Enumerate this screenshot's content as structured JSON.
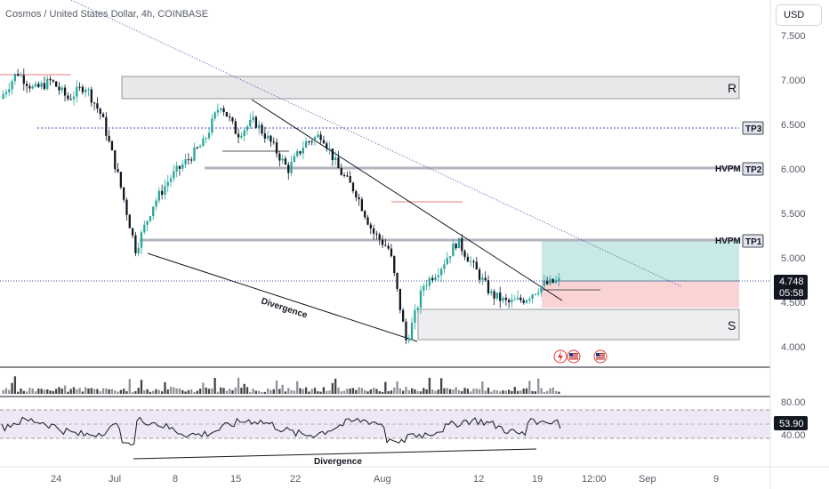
{
  "header": {
    "symbol_title": "Cosmos / United States Dollar, 4h, COINBASE",
    "currency": "USD"
  },
  "price_axis": {
    "ticks": [
      "7.500",
      "7.000",
      "6.500",
      "6.000",
      "5.500",
      "5.000",
      "4.500",
      "4.000"
    ],
    "current_price": "4.748",
    "countdown": "05:58"
  },
  "time_axis": {
    "ticks": [
      "24",
      "Jul",
      "8",
      "15",
      "22",
      "Aug",
      "12",
      "19",
      "12:00",
      "Sep",
      "9"
    ]
  },
  "annotations": {
    "zone_r": "R",
    "zone_s": "S",
    "tp3": "TP3",
    "tp2": "TP2",
    "tp1": "TP1",
    "hvpm_1": "HVPM",
    "hvpm_2": "HVPM",
    "divergence_price": "Divergence",
    "divergence_rsi": "Divergence"
  },
  "rsi_axis": {
    "ticks": [
      "80.00",
      "40.00"
    ],
    "current": "53.90"
  },
  "colors": {
    "up": "#26a69a",
    "down": "#131722",
    "tp_zone": "#b2dfdb",
    "sl_zone": "#f8c4c7",
    "rsi_line": "#131722",
    "rsi_band": "#ede7f6",
    "trendline_dotted": "#3f51b5"
  },
  "chart_data": {
    "type": "candlestick",
    "title": "Cosmos / United States Dollar, 4h, COINBASE",
    "ylim": [
      3.75,
      7.75
    ],
    "y_ticks": [
      7.5,
      7.0,
      6.5,
      6.0,
      5.5,
      5.0,
      4.5,
      4.0
    ],
    "close_path": [
      {
        "x": "Jun 20",
        "y": 6.8
      },
      {
        "x": "Jun 21",
        "y": 7.1
      },
      {
        "x": "Jun 24",
        "y": 6.9
      },
      {
        "x": "Jun 26",
        "y": 7.0
      },
      {
        "x": "Jun 28",
        "y": 6.8
      },
      {
        "x": "Jul 1",
        "y": 6.95
      },
      {
        "x": "Jul 2",
        "y": 6.6
      },
      {
        "x": "Jul 3",
        "y": 5.9
      },
      {
        "x": "Jul 4",
        "y": 5.1
      },
      {
        "x": "Jul 5",
        "y": 5.6
      },
      {
        "x": "Jul 7",
        "y": 5.9
      },
      {
        "x": "Jul 10",
        "y": 6.1
      },
      {
        "x": "Jul 13",
        "y": 6.3
      },
      {
        "x": "Jul 15",
        "y": 6.75
      },
      {
        "x": "Jul 17",
        "y": 6.4
      },
      {
        "x": "Jul 19",
        "y": 6.55
      },
      {
        "x": "Jul 21",
        "y": 6.3
      },
      {
        "x": "Jul 23",
        "y": 6.0
      },
      {
        "x": "Jul 25",
        "y": 6.3
      },
      {
        "x": "Jul 26",
        "y": 6.4
      },
      {
        "x": "Jul 28",
        "y": 6.0
      },
      {
        "x": "Jul 30",
        "y": 5.75
      },
      {
        "x": "Aug 1",
        "y": 5.3
      },
      {
        "x": "Aug 3",
        "y": 5.1
      },
      {
        "x": "Aug 5",
        "y": 4.05
      },
      {
        "x": "Aug 6",
        "y": 4.7
      },
      {
        "x": "Aug 7",
        "y": 4.9
      },
      {
        "x": "Aug 9",
        "y": 5.2
      },
      {
        "x": "Aug 11",
        "y": 4.9
      },
      {
        "x": "Aug 13",
        "y": 4.6
      },
      {
        "x": "Aug 15",
        "y": 4.5
      },
      {
        "x": "Aug 17",
        "y": 4.55
      },
      {
        "x": "Aug 19",
        "y": 4.7
      },
      {
        "x": "Aug 21",
        "y": 4.75
      }
    ],
    "levels": {
      "resistance_zone": [
        6.8,
        7.05
      ],
      "support_zone": [
        4.08,
        4.42
      ],
      "tp3": 6.47,
      "tp2": 6.0,
      "tp1": 5.2,
      "entry": 4.748,
      "stop_zone": [
        4.4,
        4.68
      ]
    },
    "rsi": {
      "ylim": [
        20,
        100
      ],
      "ticks": [
        80,
        40
      ],
      "current": 53.9
    }
  }
}
